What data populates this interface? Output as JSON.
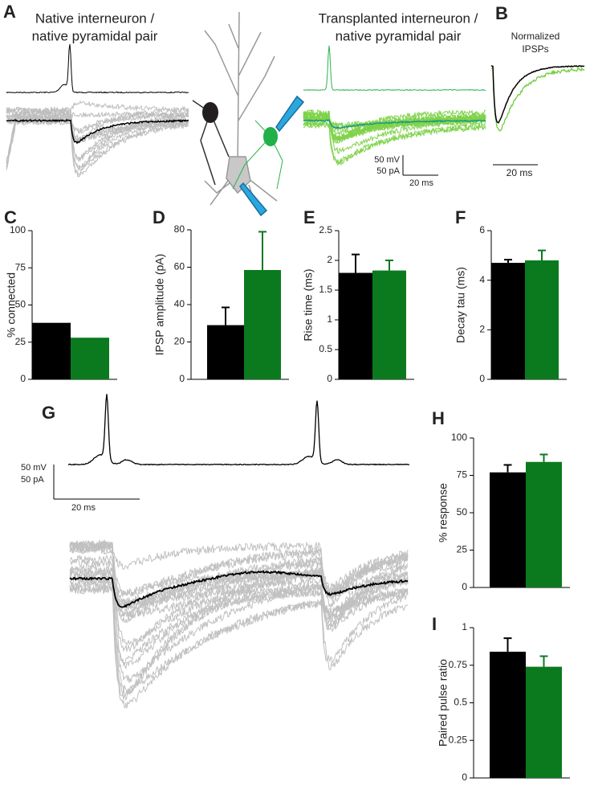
{
  "panels": {
    "a": {
      "letter": "A",
      "left_title": [
        "Native interneuron /",
        "native pyramidal pair"
      ],
      "right_title": [
        "Transplanted interneuron /",
        "native pyramidal pair"
      ],
      "scale": [
        "50 mV",
        "50 pA",
        "20 ms"
      ]
    },
    "b": {
      "letter": "B",
      "title": [
        "Normalized",
        "IPSPs"
      ],
      "scale": "20 ms"
    },
    "g": {
      "letter": "G",
      "scale": [
        "50 mV",
        "50 pA",
        "20 ms"
      ]
    }
  },
  "chart_data": [
    {
      "type": "bar",
      "panel": "C",
      "ylabel": "% connected",
      "categories": [
        null,
        null
      ],
      "values": [
        38,
        28
      ],
      "colors": [
        "#000000",
        "#0b7a1f"
      ],
      "ylim": [
        0,
        100
      ],
      "yticks": [
        0,
        25,
        50,
        75,
        100
      ]
    },
    {
      "type": "bar",
      "panel": "D",
      "ylabel": "IPSP amplitude (pA)",
      "categories": [
        null,
        null
      ],
      "values": [
        29,
        58.5
      ],
      "errors": [
        9.5,
        20.5
      ],
      "colors": [
        "#000000",
        "#0b7a1f"
      ],
      "ylim": [
        0,
        80
      ],
      "yticks": [
        0,
        20,
        40,
        60,
        80
      ]
    },
    {
      "type": "bar",
      "panel": "E",
      "ylabel": "Rise time (ms)",
      "categories": [
        null,
        null
      ],
      "values": [
        1.79,
        1.83
      ],
      "errors": [
        0.31,
        0.17
      ],
      "colors": [
        "#000000",
        "#0b7a1f"
      ],
      "ylim": [
        0,
        2.5
      ],
      "yticks": [
        0,
        0.5,
        1,
        1.5,
        2,
        2.5
      ]
    },
    {
      "type": "bar",
      "panel": "F",
      "ylabel": "Decay tau (ms)",
      "categories": [
        null,
        null
      ],
      "values": [
        4.7,
        4.8
      ],
      "errors": [
        0.13,
        0.4
      ],
      "colors": [
        "#000000",
        "#0b7a1f"
      ],
      "ylim": [
        0,
        6
      ],
      "yticks": [
        0,
        2,
        4,
        6
      ]
    },
    {
      "type": "bar",
      "panel": "H",
      "ylabel": "% response",
      "categories": [
        null,
        null
      ],
      "values": [
        77,
        84
      ],
      "errors": [
        5,
        5
      ],
      "colors": [
        "#000000",
        "#0b7a1f"
      ],
      "ylim": [
        0,
        100
      ],
      "yticks": [
        0,
        25,
        50,
        75,
        100
      ]
    },
    {
      "type": "bar",
      "panel": "I",
      "ylabel": "Paired pulse ratio",
      "categories": [
        null,
        null
      ],
      "values": [
        0.84,
        0.74
      ],
      "errors": [
        0.09,
        0.07
      ],
      "colors": [
        "#000000",
        "#0b7a1f"
      ],
      "ylim": [
        0,
        1
      ],
      "yticks": [
        0,
        0.25,
        0.5,
        0.75,
        1
      ]
    }
  ]
}
